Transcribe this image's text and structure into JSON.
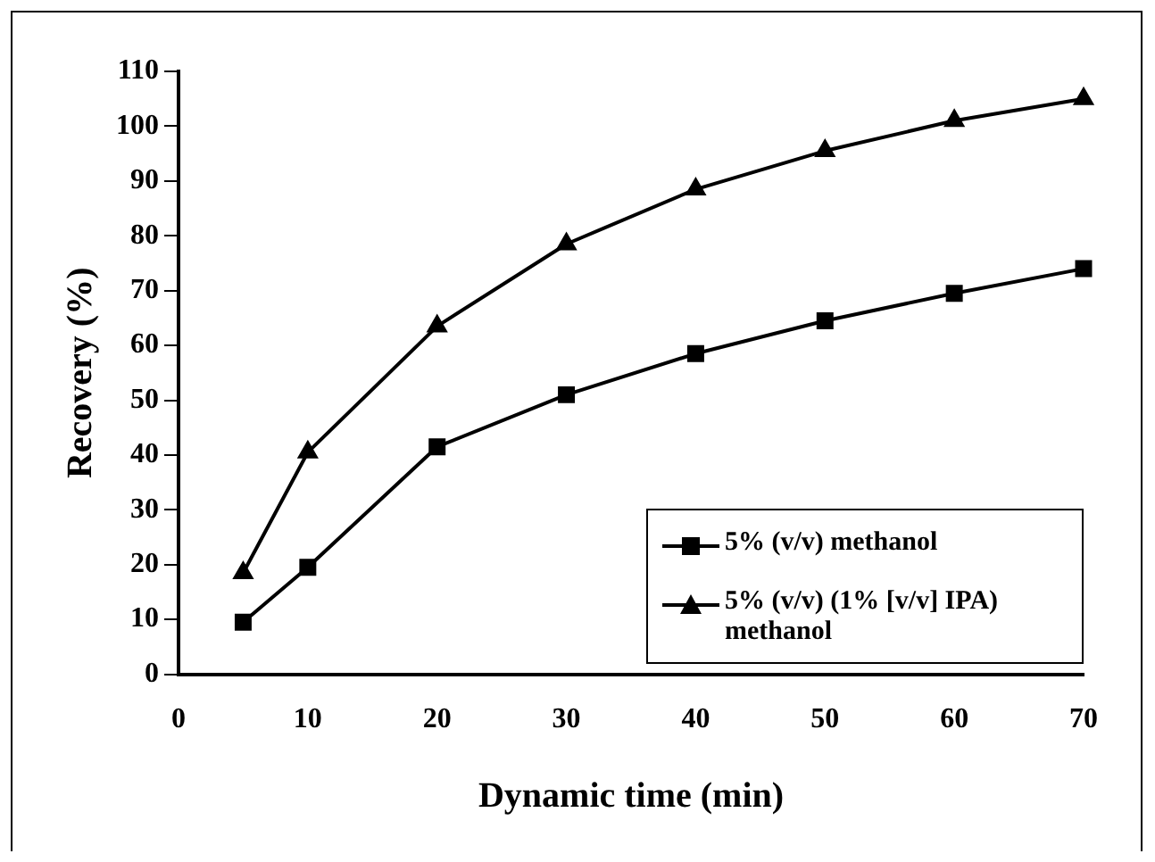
{
  "chart_data": {
    "type": "line",
    "xlabel": "Dynamic time (min)",
    "ylabel": "Recovery (%)",
    "x": [
      5,
      10,
      20,
      30,
      40,
      50,
      60,
      70
    ],
    "series": [
      {
        "name": "5% (v/v) methanol",
        "color": "#000000",
        "marker": "square",
        "values": [
          9.5,
          19.5,
          41.5,
          51,
          58.5,
          64.5,
          69.5,
          74
        ]
      },
      {
        "name": "5% (v/v) (1% [v/v] IPA) methanol",
        "color": "#000000",
        "marker": "triangle",
        "values": [
          18.5,
          40.5,
          63.5,
          78.5,
          88.5,
          95.5,
          101,
          105
        ]
      }
    ],
    "xlim": [
      0,
      70
    ],
    "xticks": [
      0,
      10,
      20,
      30,
      40,
      50,
      60,
      70
    ],
    "ylim": [
      0,
      110
    ],
    "yticks": [
      0,
      10,
      20,
      30,
      40,
      50,
      60,
      70,
      80,
      90,
      100,
      110
    ],
    "grid": false,
    "legend": "bottom right",
    "line_style": "solid"
  }
}
